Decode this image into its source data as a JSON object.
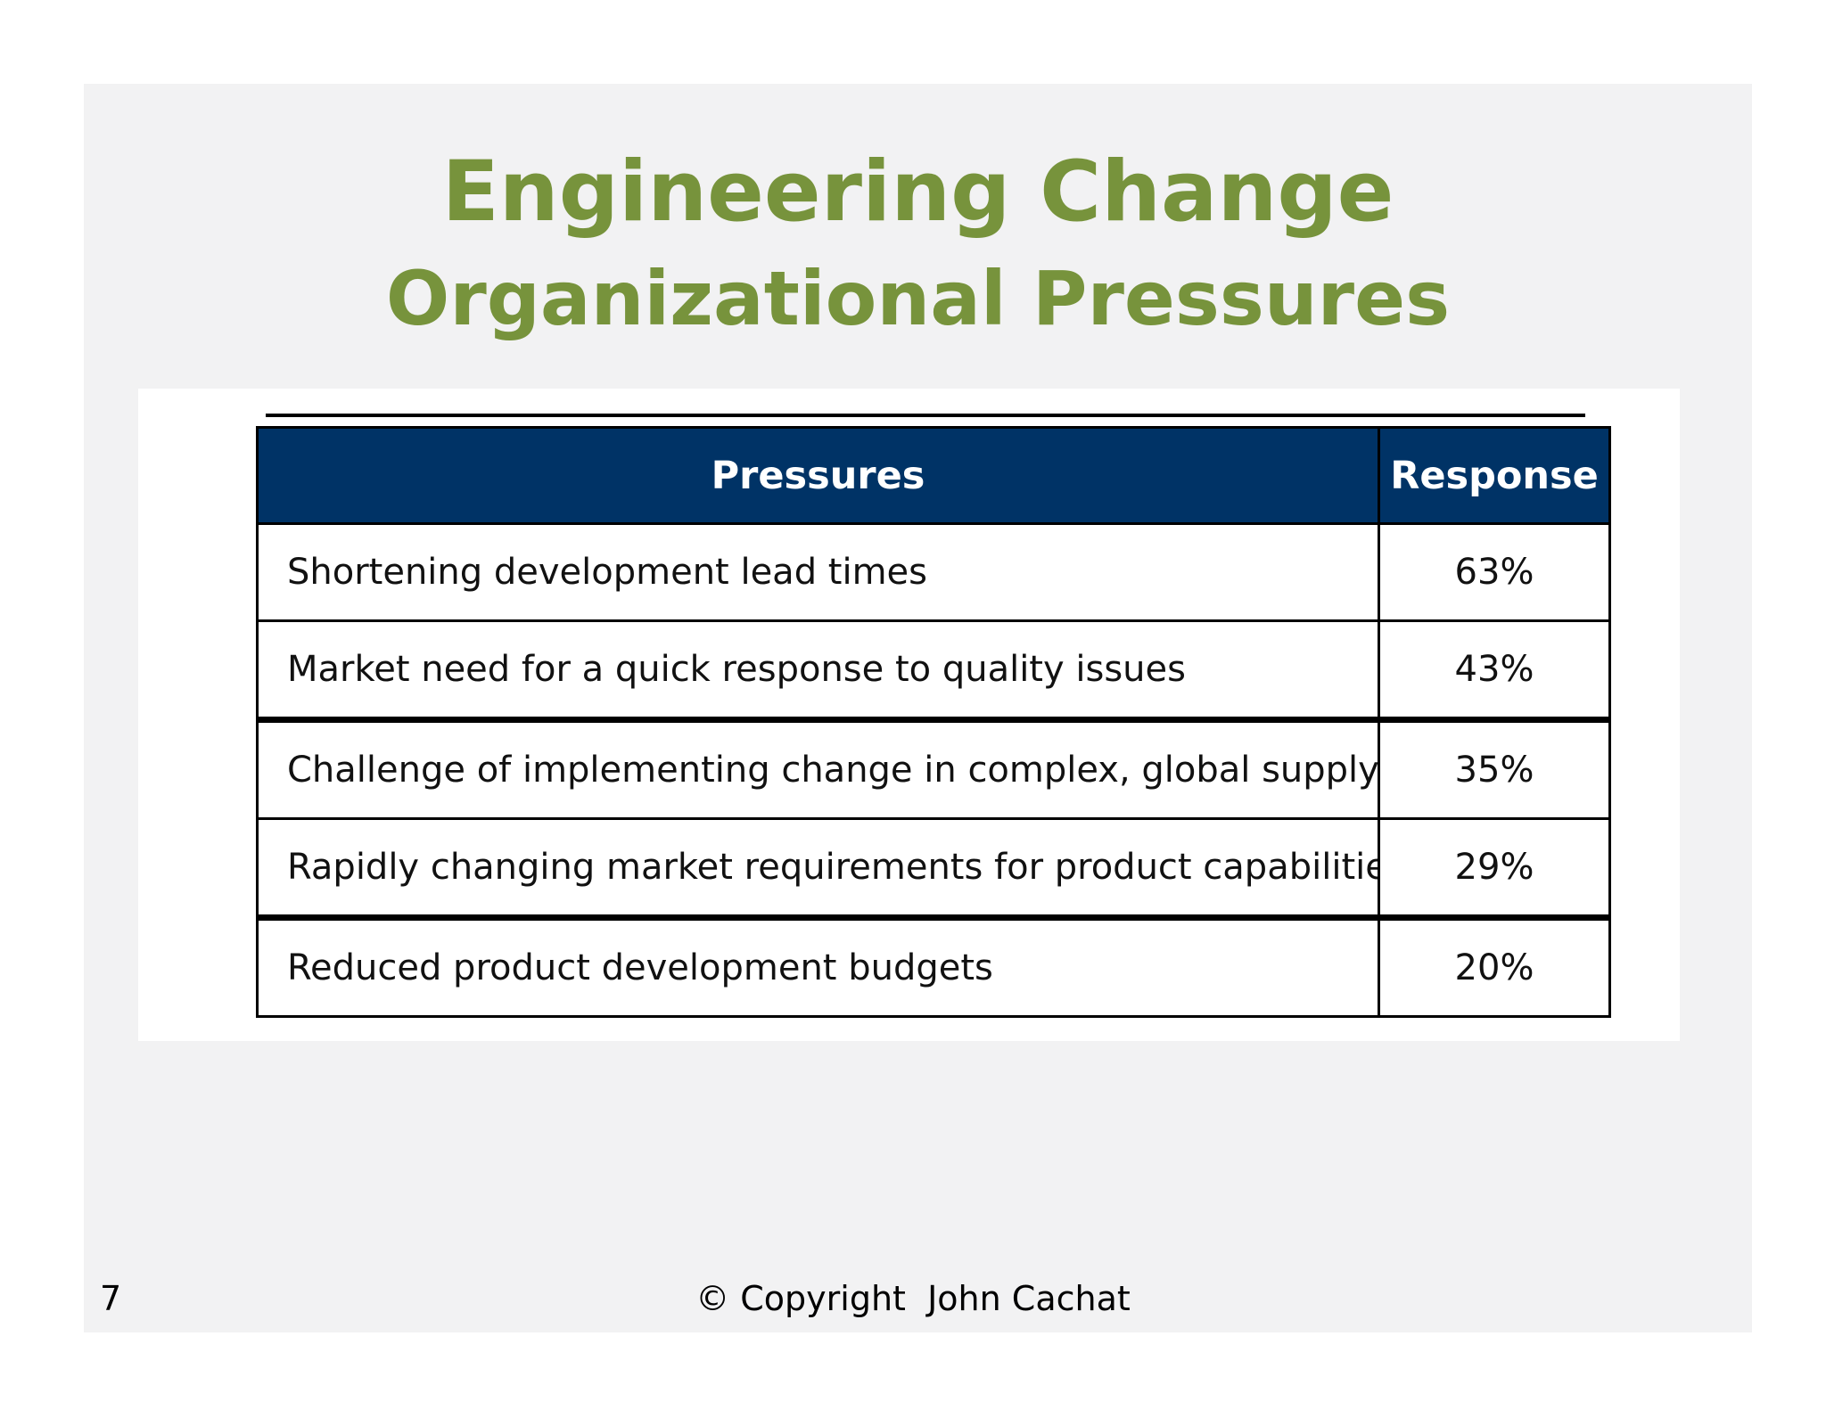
{
  "slide": {
    "title": "Engineering Change",
    "subtitle": "Organizational Pressures",
    "page_number": "7",
    "copyright": "© Copyright  John Cachat"
  },
  "table": {
    "headers": [
      "Pressures",
      "Response"
    ],
    "rows": [
      {
        "pressure": "Shortening development lead times",
        "response": "63%"
      },
      {
        "pressure": "Market need for a quick response to quality issues",
        "response": "43%"
      },
      {
        "pressure": "Challenge of implementing change in complex, global supply chains",
        "response": "35%"
      },
      {
        "pressure": "Rapidly changing market requirements for product capabilities",
        "response": "29%"
      },
      {
        "pressure": "Reduced product development budgets",
        "response": "20%"
      }
    ]
  },
  "colors": {
    "title": "#77933c",
    "header_background": "#003366",
    "slide_background": "#f2f2f3"
  }
}
